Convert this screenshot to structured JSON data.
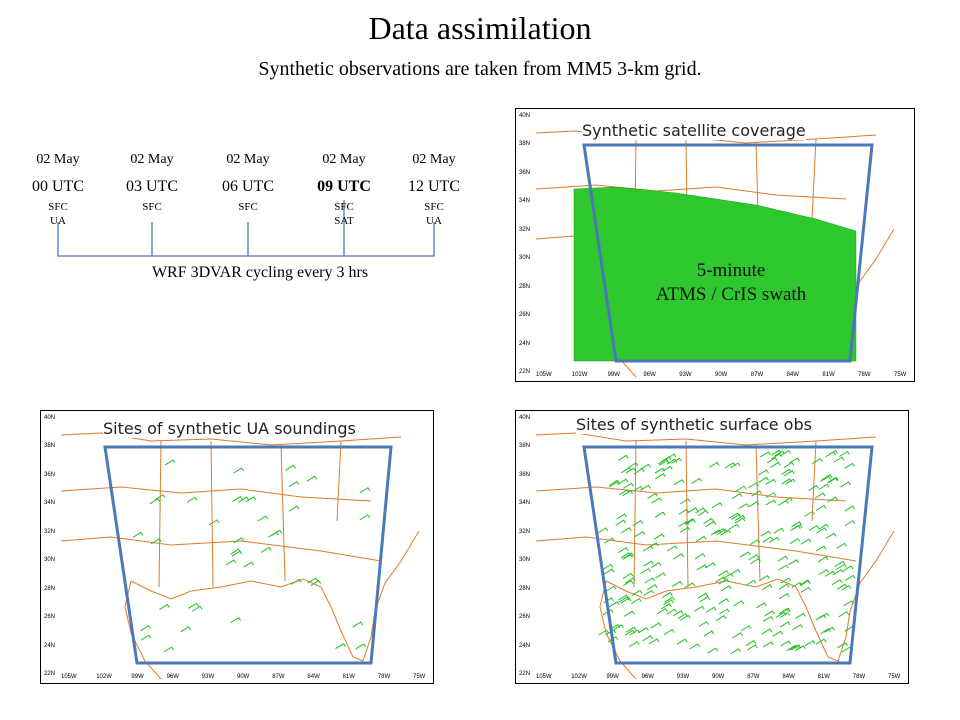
{
  "title": "Data assimilation",
  "subtitle": "Synthetic observations are taken from MM5 3-km grid.",
  "timeline": {
    "times": [
      {
        "date": "02 May",
        "utc": "00 UTC",
        "obs": "SFC\nUA",
        "bold": false
      },
      {
        "date": "02 May",
        "utc": "03 UTC",
        "obs": "SFC",
        "bold": false
      },
      {
        "date": "02 May",
        "utc": "06 UTC",
        "obs": "SFC",
        "bold": false
      },
      {
        "date": "02 May",
        "utc": "09 UTC",
        "obs": "SFC\nSAT",
        "bold": true
      },
      {
        "date": "02 May",
        "utc": "12 UTC",
        "obs": "SFC\nUA",
        "bold": false
      }
    ],
    "caption": "WRF 3DVAR cycling every 3 hrs"
  },
  "maps": {
    "satellite": {
      "label": "Synthetic satellite coverage",
      "swath_line1": "5-minute",
      "swath_line2": "ATMS / CrIS swath"
    },
    "ua": {
      "label": "Sites of synthetic UA soundings"
    },
    "surface": {
      "label": "Sites of synthetic surface obs"
    }
  },
  "axes": {
    "lat_labels": [
      "40N",
      "38N",
      "36N",
      "34N",
      "32N",
      "30N",
      "28N",
      "26N",
      "24N",
      "22N"
    ],
    "lon_labels": [
      "105W",
      "102W",
      "99W",
      "96W",
      "93W",
      "90W",
      "87W",
      "84W",
      "81W",
      "78W",
      "75W"
    ]
  },
  "colors": {
    "domain": "#4a78b8",
    "coast": "#e07a2a",
    "obs": "#22c022"
  }
}
